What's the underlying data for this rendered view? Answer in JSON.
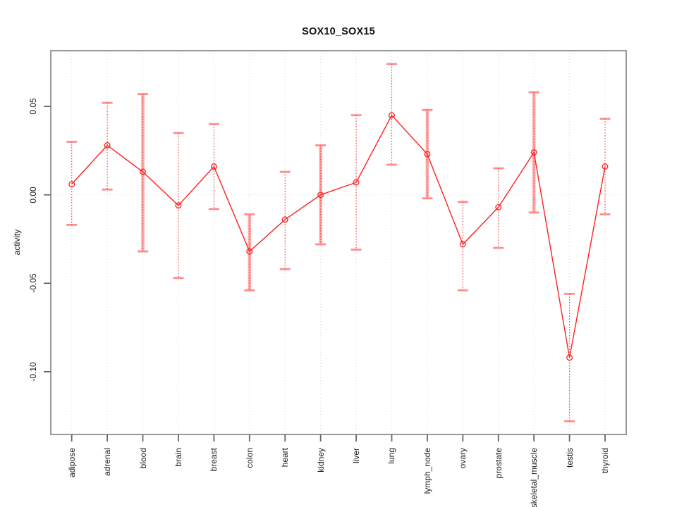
{
  "title": "SOX10_SOX15",
  "chart_data": {
    "type": "line",
    "title": "SOX10_SOX15",
    "xlabel": "",
    "ylabel": "activity",
    "legend": "none",
    "grid": "dotted vertical gridline at each category; dotted horizontal line at y=0",
    "categories": [
      "adipose",
      "adrenal",
      "blood",
      "brain",
      "breast",
      "colon",
      "heart",
      "kidney",
      "liver",
      "lung",
      "lymph_node",
      "ovary",
      "prostate",
      "skeletal_muscle",
      "testis",
      "thyroid"
    ],
    "series": [
      {
        "name": "activity",
        "values": [
          0.006,
          0.028,
          0.013,
          -0.006,
          0.016,
          -0.032,
          -0.014,
          0.0,
          0.007,
          0.045,
          0.023,
          -0.028,
          -0.007,
          0.024,
          -0.092,
          0.016
        ],
        "error_upper": [
          0.03,
          0.052,
          0.057,
          0.035,
          0.04,
          -0.011,
          0.013,
          0.028,
          0.045,
          0.074,
          0.048,
          -0.004,
          0.015,
          0.058,
          -0.056,
          0.043
        ],
        "error_lower": [
          -0.017,
          0.003,
          -0.032,
          -0.047,
          -0.008,
          -0.054,
          -0.042,
          -0.028,
          -0.031,
          0.017,
          -0.002,
          -0.054,
          -0.03,
          -0.01,
          -0.128,
          -0.011
        ]
      }
    ],
    "wide_bar_categories": [
      "blood",
      "colon",
      "kidney",
      "lymph_node",
      "skeletal_muscle"
    ],
    "ylim": [
      -0.1355,
      0.0815
    ],
    "yticks": [
      0.05,
      0.0,
      -0.05,
      -0.1
    ],
    "ytick_labels": [
      "0.05",
      "0.00",
      "-0.05",
      "-0.10"
    ],
    "colors": {
      "line": "#ff2020",
      "point": "#ff2020",
      "error_cap": "#ff8d8d",
      "error_stem": "#ff4444",
      "wide_bar": "#ffabab",
      "grid": "#dcdcdc",
      "box": "#989898",
      "tick": "#666666",
      "text": "#1a1a1a"
    }
  }
}
